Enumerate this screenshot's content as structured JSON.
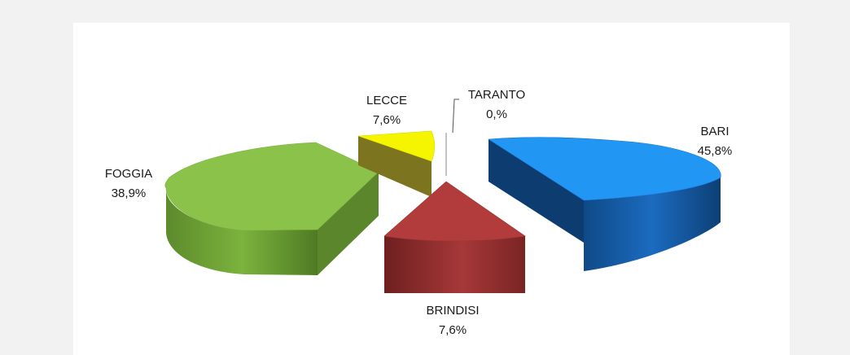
{
  "chart_data": {
    "type": "pie",
    "style": "3d-exploded",
    "title": "",
    "slices": [
      {
        "name": "BARI",
        "value": 45.8,
        "label_value": "45,8%",
        "color": "#1e88e5"
      },
      {
        "name": "BRINDISI",
        "value": 7.6,
        "label_value": "7,6%",
        "color": "#a93a3a"
      },
      {
        "name": "FOGGIA",
        "value": 38.9,
        "label_value": "38,9%",
        "color": "#8bc34a"
      },
      {
        "name": "LECCE",
        "value": 7.6,
        "label_value": "7,6%",
        "color": "#f2f200"
      },
      {
        "name": "TARANTO",
        "value": 0.0,
        "label_value": "0,%",
        "color": "#d9d9d9"
      }
    ]
  }
}
